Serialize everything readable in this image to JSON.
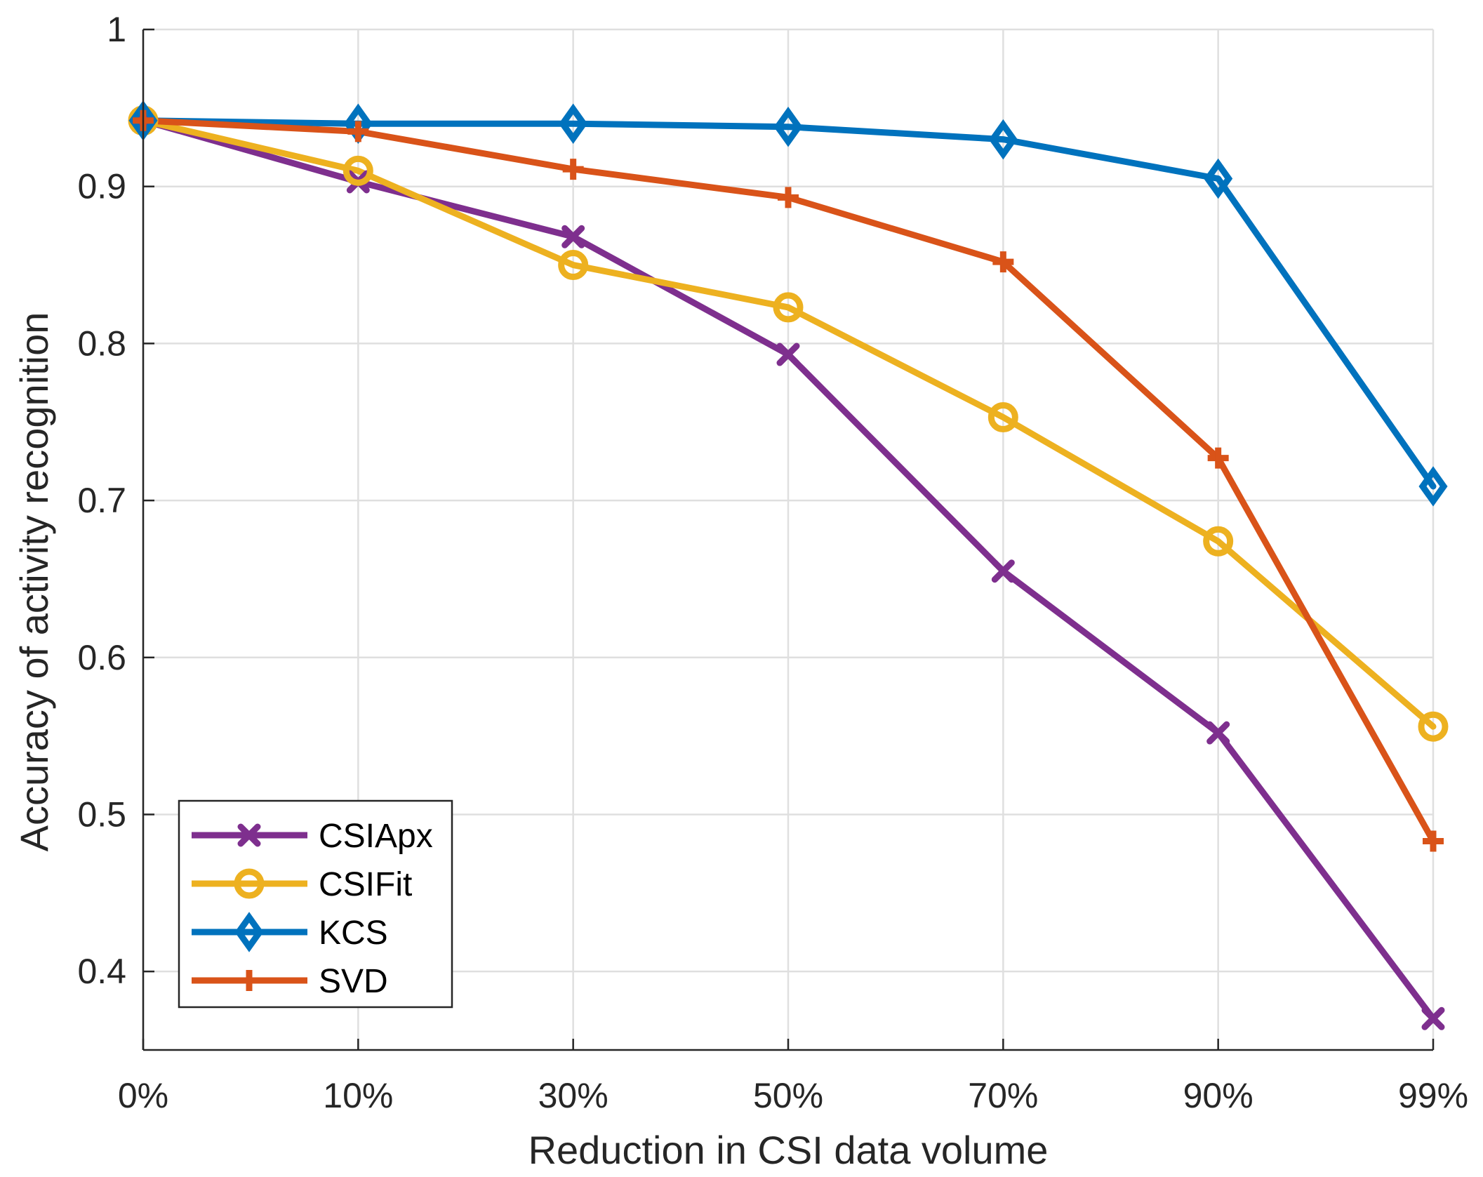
{
  "chart_data": {
    "type": "line",
    "title": "",
    "xlabel": "Reduction in CSI data volume",
    "ylabel": "Accuracy of activity recognition",
    "categories": [
      "0%",
      "10%",
      "30%",
      "50%",
      "70%",
      "90%",
      "99%"
    ],
    "ylim": [
      0.35,
      1.0
    ],
    "yticks": [
      0.4,
      0.5,
      0.6,
      0.7,
      0.8,
      0.9,
      1
    ],
    "ytick_labels": [
      "0.4",
      "0.5",
      "0.6",
      "0.7",
      "0.8",
      "0.9",
      "1"
    ],
    "grid": true,
    "legend_position": "bottom-left",
    "series": [
      {
        "name": "CSIApx",
        "values": [
          0.942,
          0.903,
          0.868,
          0.793,
          0.655,
          0.552,
          0.37
        ],
        "color": "#7E2F8E",
        "marker": "x"
      },
      {
        "name": "CSIFit",
        "values": [
          0.942,
          0.91,
          0.85,
          0.823,
          0.753,
          0.674,
          0.556
        ],
        "color": "#EDB120",
        "marker": "circle"
      },
      {
        "name": "KCS",
        "values": [
          0.942,
          0.94,
          0.94,
          0.938,
          0.93,
          0.905,
          0.709
        ],
        "color": "#0072BD",
        "marker": "diamond"
      },
      {
        "name": "SVD",
        "values": [
          0.942,
          0.935,
          0.911,
          0.893,
          0.852,
          0.727,
          0.483
        ],
        "color": "#D95319",
        "marker": "plus"
      }
    ]
  }
}
